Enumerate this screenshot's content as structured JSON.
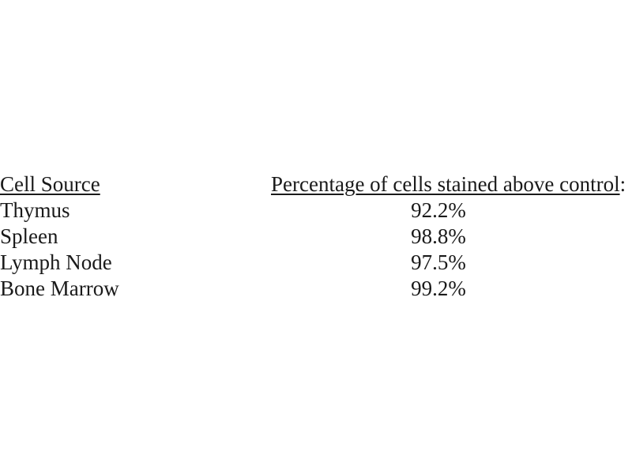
{
  "colors": {
    "background": "#ffffff",
    "text": "#1a1a1a"
  },
  "table": {
    "header": {
      "source": "Cell Source",
      "percentage": "Percentage of cells stained above control",
      "colon": ":"
    },
    "rows": [
      {
        "source": "Thymus",
        "value": "92.2%"
      },
      {
        "source": "Spleen",
        "value": "98.8%"
      },
      {
        "source": "Lymph Node",
        "value": "97.5%"
      },
      {
        "source": "Bone Marrow",
        "value": "99.2%"
      }
    ]
  }
}
